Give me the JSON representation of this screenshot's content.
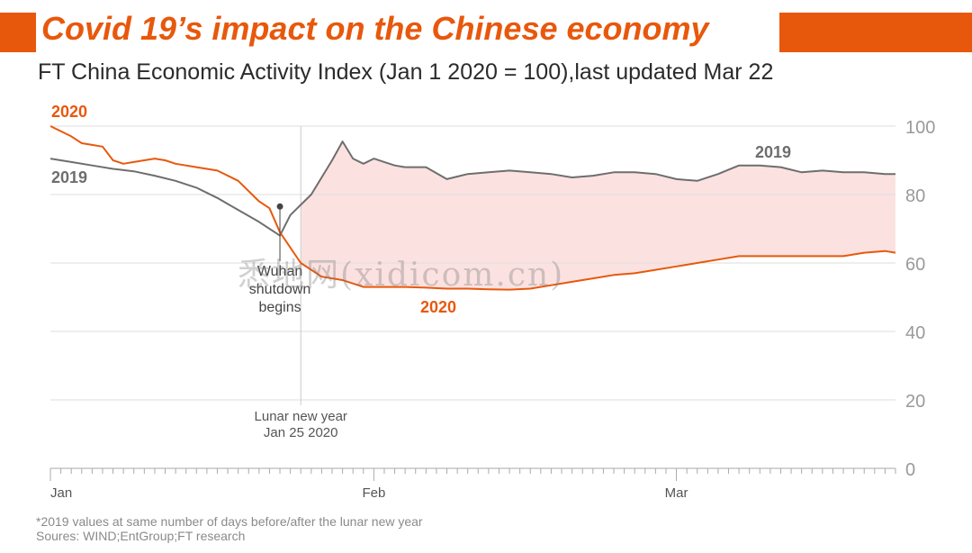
{
  "header": {
    "title": "Covid 19’s impact on the Chinese economy",
    "subtitle": "FT China Economic Activity Index (Jan 1 2020 = 100),last updated Mar 22"
  },
  "footer": {
    "note": "*2019 values at same number of days before/after the lunar new year",
    "sources": "Soures: WIND;EntGroup;FT research"
  },
  "watermark": "悉地网(xidicom.cn)",
  "colors": {
    "accent": "#e8580c",
    "series_2019": "#6e6e6e",
    "series_2020": "#e8580c",
    "fill": "#fbe2e1",
    "grid": "#dddddd",
    "axis_text": "#9a9a9a"
  },
  "chart_data": {
    "type": "line",
    "title": "",
    "xlabel": "",
    "ylabel": "",
    "ylim": [
      0,
      100
    ],
    "yticks": [
      0,
      20,
      40,
      60,
      80,
      100
    ],
    "y_tick_labels": [
      "0",
      "20",
      "40",
      "60",
      "80",
      "100"
    ],
    "xlim": [
      0,
      81
    ],
    "x_unit": "days since Jan 1 2020",
    "x_tick_labels": [
      {
        "day": 0,
        "label": "Jan"
      },
      {
        "day": 31,
        "label": "Feb"
      },
      {
        "day": 60,
        "label": "Mar"
      }
    ],
    "grid": true,
    "shaded_between_series": true,
    "series": [
      {
        "name": "2019",
        "label": "2019",
        "end_label": "2019",
        "x": [
          0,
          2,
          4,
          6,
          8,
          10,
          12,
          14,
          16,
          18,
          20,
          22,
          23,
          24,
          25,
          26,
          27,
          28,
          29,
          30,
          31,
          32,
          33,
          34,
          36,
          38,
          40,
          42,
          44,
          46,
          48,
          50,
          52,
          54,
          56,
          58,
          60,
          62,
          64,
          66,
          68,
          70,
          72,
          74,
          76,
          78,
          80,
          81
        ],
        "values": [
          90.5,
          89.5,
          88.5,
          87.5,
          86.8,
          85.5,
          84,
          82,
          79,
          75.5,
          72,
          68,
          74,
          77,
          80,
          85,
          90,
          95.5,
          90.5,
          89,
          90.5,
          89.5,
          88.5,
          88,
          88,
          84.5,
          86,
          86.5,
          87,
          86.5,
          86,
          85,
          85.5,
          86.5,
          86.5,
          86,
          84.5,
          84,
          86,
          88.5,
          88.5,
          88,
          86.5,
          87,
          86.5,
          86.5,
          86,
          86
        ]
      },
      {
        "name": "2020",
        "label": "2020",
        "end_label": "2020",
        "x": [
          0,
          2,
          3,
          4,
          5,
          6,
          7,
          8,
          9,
          10,
          11,
          12,
          14,
          16,
          18,
          20,
          21,
          22,
          24,
          26,
          28,
          30,
          32,
          34,
          36,
          38,
          40,
          42,
          44,
          46,
          48,
          50,
          52,
          54,
          56,
          58,
          60,
          62,
          64,
          66,
          68,
          70,
          72,
          74,
          76,
          78,
          80,
          81
        ],
        "values": [
          100,
          97,
          95,
          94.5,
          94,
          90,
          89,
          89.5,
          90,
          90.5,
          90,
          89,
          88,
          87,
          84,
          78,
          76,
          69,
          60,
          56,
          55,
          53,
          53,
          53,
          52.8,
          52.5,
          52.5,
          52.3,
          52.2,
          52.5,
          53.5,
          54.5,
          55.5,
          56.5,
          57,
          58,
          59,
          60,
          61,
          62,
          62,
          62,
          62,
          62,
          62,
          63,
          63.5,
          63
        ]
      }
    ],
    "annotations": [
      {
        "text_lines": [
          "Wuhan",
          "shutdown",
          "begins"
        ],
        "x": 22,
        "y": 76.5,
        "series": "2020"
      },
      {
        "text_lines": [
          "Lunar new year",
          "Jan 25 2020"
        ],
        "x": 24
      }
    ]
  }
}
